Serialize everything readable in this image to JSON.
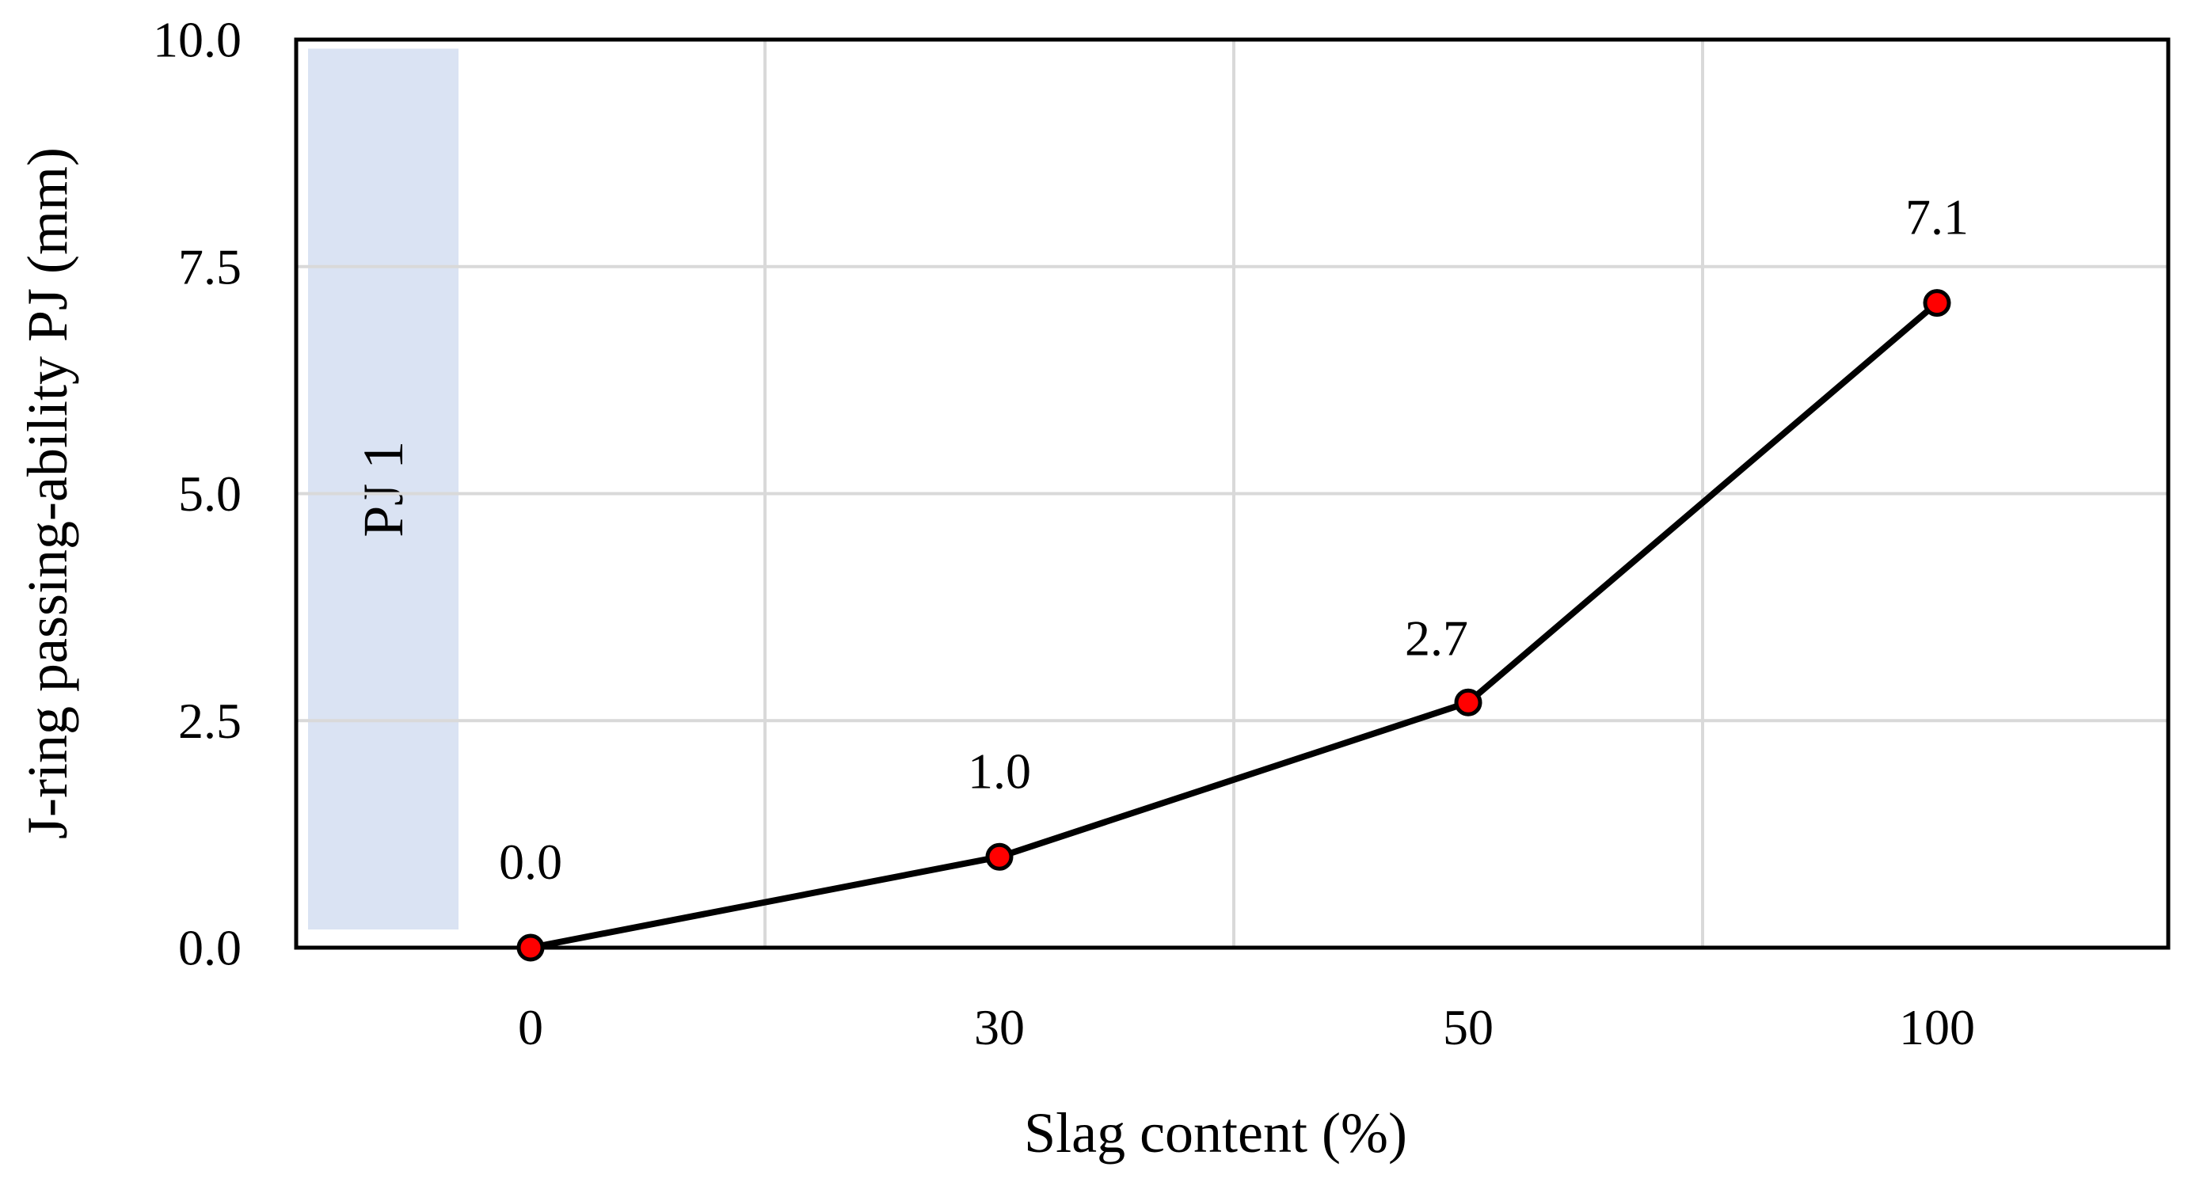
{
  "chart_data": {
    "type": "line",
    "title": "",
    "xlabel": "Slag content (%)",
    "ylabel": "J-ring passing-ability  PJ (mm)",
    "categories": [
      "0",
      "30",
      "50",
      "100"
    ],
    "x_axis": "categorical",
    "values": [
      0.0,
      1.0,
      2.7,
      7.1
    ],
    "data_labels": [
      "0.0",
      "1.0",
      "2.7",
      "7.1"
    ],
    "ylim": [
      0,
      10
    ],
    "y_ticks": [
      "0.0",
      "2.5",
      "5.0",
      "7.5",
      "10.0"
    ],
    "y_tick_values": [
      0,
      2.5,
      5,
      7.5,
      10
    ],
    "grid": true,
    "baseline_style": "dash-dot",
    "band": {
      "label": "PJ 1",
      "ylim": [
        0.2,
        9.9
      ],
      "color": "#dae3f3"
    },
    "colors": {
      "line": "#000000",
      "marker_fill": "#ff0000",
      "marker_edge": "#000000",
      "grid": "#d9d9d9"
    }
  }
}
